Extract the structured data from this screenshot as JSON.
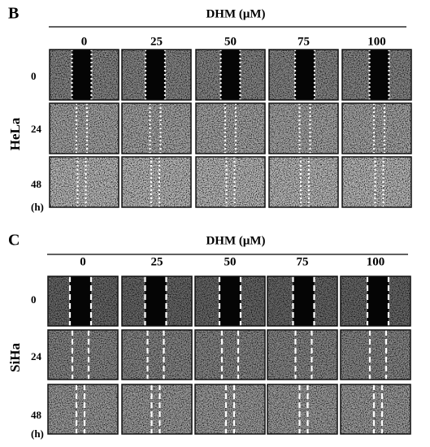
{
  "panels": [
    {
      "label": "B",
      "title": "DHM (μM)",
      "columns": [
        "0",
        "25",
        "50",
        "75",
        "100"
      ],
      "rows": [
        "0",
        "24",
        "48"
      ],
      "unit": "(h)",
      "cell_line": "HeLa"
    },
    {
      "label": "C",
      "title": "DHM (μM)",
      "columns": [
        "0",
        "25",
        "50",
        "75",
        "100"
      ],
      "rows": [
        "0",
        "24",
        "48"
      ],
      "unit": "(h)",
      "cell_line": "SiHa"
    }
  ]
}
